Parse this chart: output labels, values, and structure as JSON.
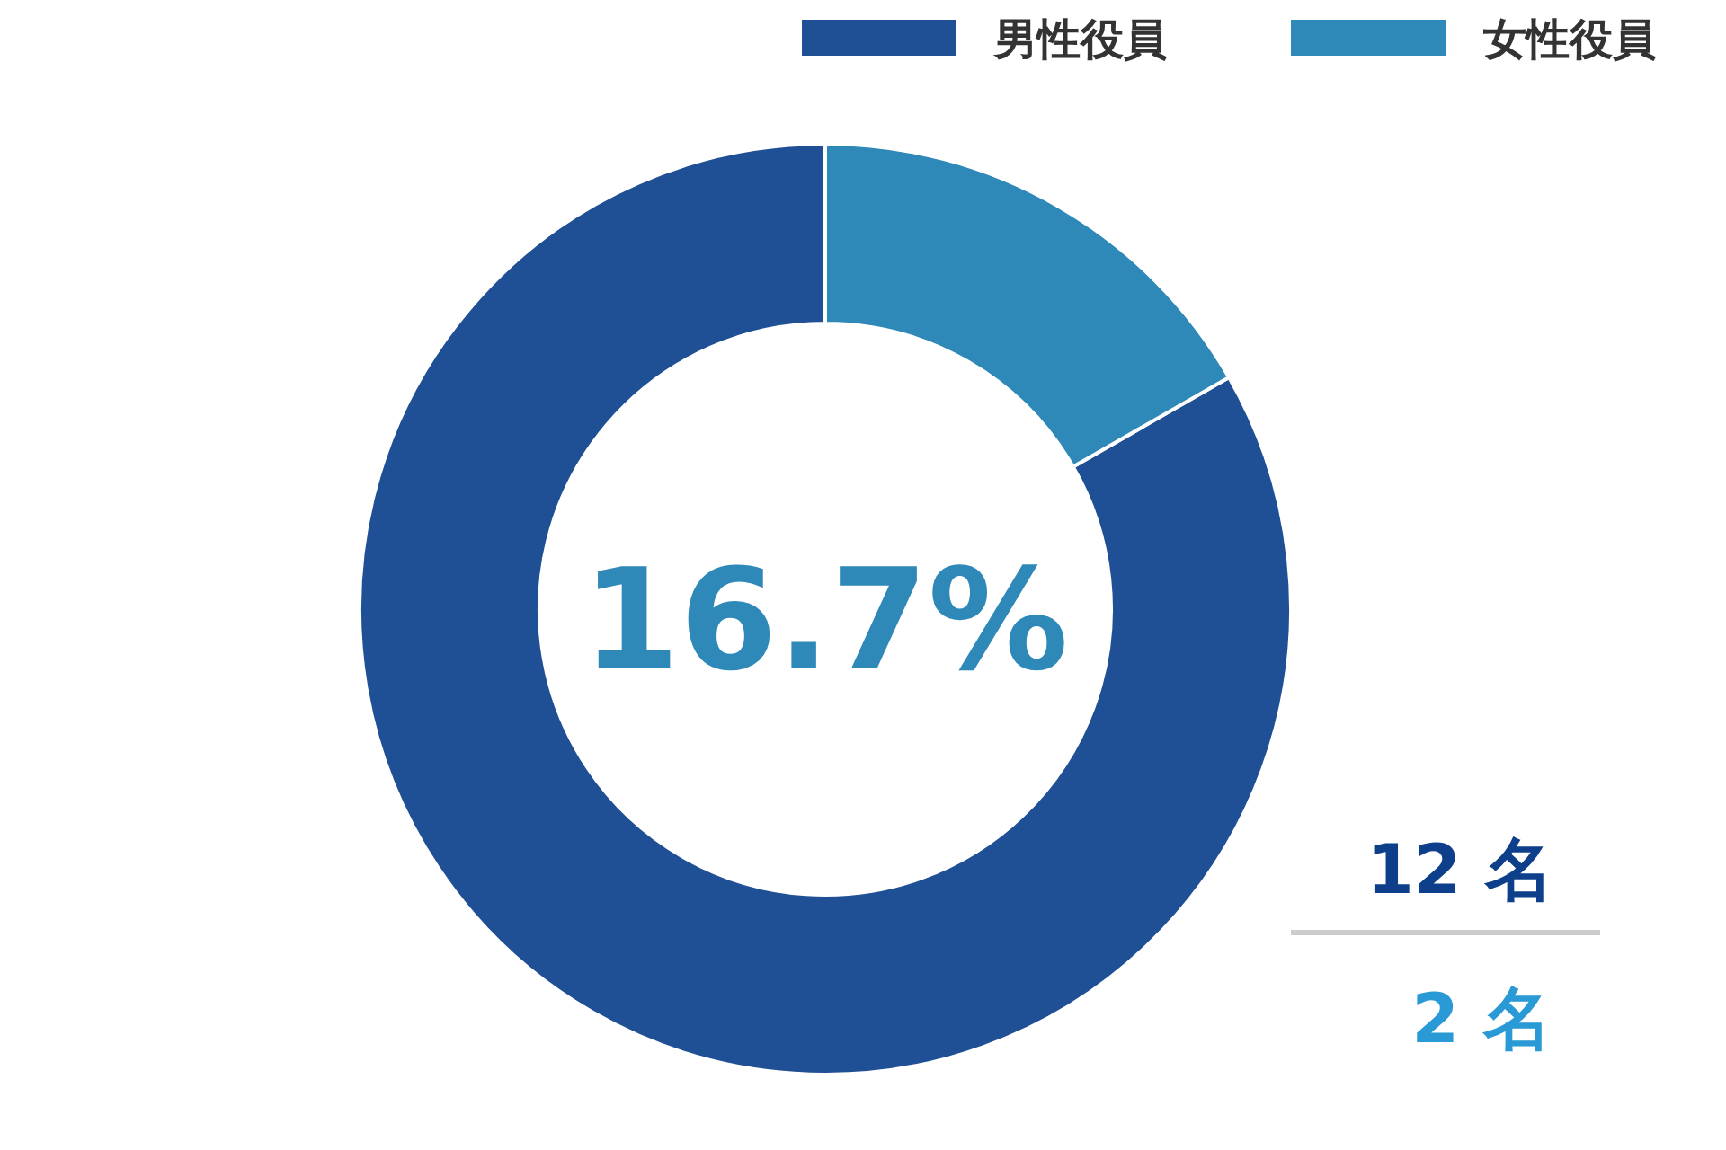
{
  "chart_data": {
    "type": "donut",
    "categories": [
      "男性役員",
      "女性役員"
    ],
    "values": [
      83.3,
      16.7
    ],
    "colors": [
      "#1f4f95",
      "#2e88b8"
    ],
    "legend": "top right",
    "annotations": [
      "16.7%",
      "12 名",
      "2 名"
    ]
  }
}
